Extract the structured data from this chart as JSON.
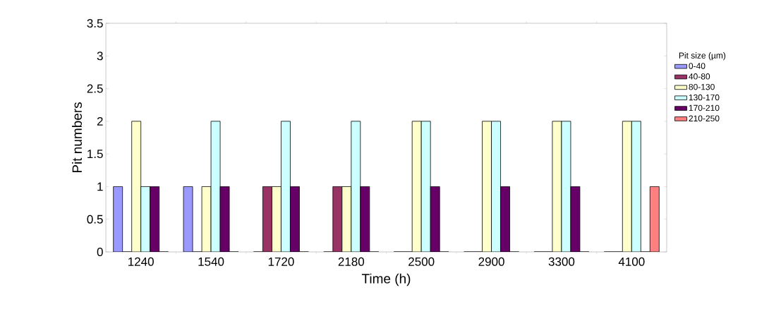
{
  "chart_data": {
    "type": "bar",
    "xlabel": "Time (h)",
    "ylabel": "Pit numbers",
    "legend_title": "Pit size (µm)",
    "legend": "right",
    "grid": false,
    "categories": [
      "1240",
      "1540",
      "1720",
      "2180",
      "2500",
      "2900",
      "3300",
      "4100"
    ],
    "ylim": [
      0,
      3.5
    ],
    "yticks": [
      0,
      0.5,
      1,
      1.5,
      2,
      2.5,
      3,
      3.5
    ],
    "series": [
      {
        "name": "0-40",
        "color": "#9999ff",
        "values": [
          1,
          1,
          0,
          0,
          0,
          0,
          0,
          0
        ]
      },
      {
        "name": "40-80",
        "color": "#993366",
        "values": [
          0,
          0,
          1,
          1,
          0,
          0,
          0,
          0
        ]
      },
      {
        "name": "80-130",
        "color": "#ffffcc",
        "values": [
          2,
          1,
          1,
          1,
          2,
          2,
          2,
          2
        ]
      },
      {
        "name": "130-170",
        "color": "#ccffff",
        "values": [
          1,
          2,
          2,
          2,
          2,
          2,
          2,
          2
        ]
      },
      {
        "name": "170-210",
        "color": "#660066",
        "values": [
          1,
          1,
          1,
          1,
          1,
          1,
          1,
          0
        ]
      },
      {
        "name": "210-250",
        "color": "#ff8080",
        "values": [
          0,
          0,
          0,
          0,
          0,
          0,
          0,
          1
        ]
      }
    ]
  }
}
